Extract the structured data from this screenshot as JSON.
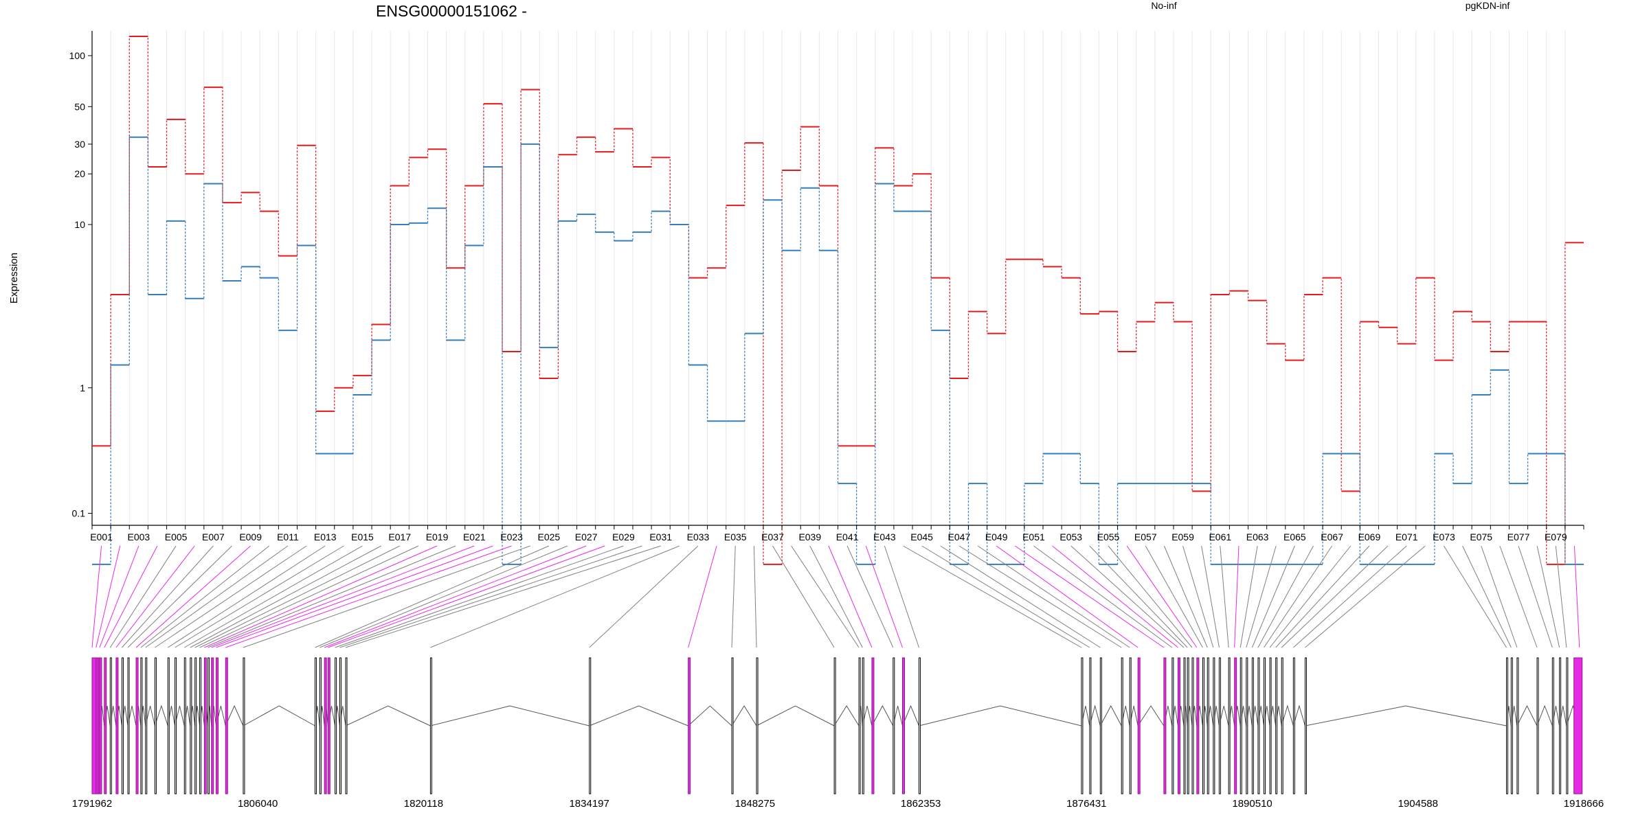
{
  "chart_data": {
    "type": "line",
    "title": "ENSG00000151062 -",
    "ylabel": "Expression",
    "y_scale": "log(x+0.1)",
    "ylim": [
      0.07,
      140
    ],
    "yticks": [
      0.1,
      1,
      10,
      20,
      30,
      50,
      100
    ],
    "ytick_labels": [
      "0.1",
      "1",
      "10",
      "20",
      "30",
      "50",
      "100"
    ],
    "legend_placement": "top",
    "exons": [
      "E001",
      "E002",
      "E003",
      "E004",
      "E005",
      "E006",
      "E007",
      "E008",
      "E009",
      "E010",
      "E011",
      "E012",
      "E013",
      "E014",
      "E015",
      "E016",
      "E017",
      "E018",
      "E019",
      "E020",
      "E021",
      "E022",
      "E023",
      "E024",
      "E025",
      "E026",
      "E027",
      "E028",
      "E029",
      "E030",
      "E031",
      "E032",
      "E033",
      "E034",
      "E035",
      "E036",
      "E037",
      "E038",
      "E039",
      "E040",
      "E041",
      "E042",
      "E043",
      "E044",
      "E045",
      "E046",
      "E047",
      "E048",
      "E049",
      "E050",
      "E051",
      "E052",
      "E053",
      "E054",
      "E055",
      "E056",
      "E057",
      "E058",
      "E059",
      "E060",
      "E061",
      "E062",
      "E063",
      "E064",
      "E065",
      "E066",
      "E067",
      "E068",
      "E069",
      "E070",
      "E071",
      "E072",
      "E073",
      "E074",
      "E075",
      "E076",
      "E077",
      "E078",
      "E079",
      "E080"
    ],
    "series": [
      {
        "name": "No-inf",
        "color": "#e41a1c",
        "values": [
          0.4,
          3.8,
          130,
          22,
          42,
          20,
          65,
          13.5,
          15.5,
          12,
          6.5,
          29.5,
          0.7,
          1,
          1.2,
          2.5,
          17,
          25,
          28,
          5.5,
          17,
          52,
          1.7,
          63,
          1.15,
          26,
          33,
          27,
          37,
          22,
          25,
          10,
          4.8,
          5.5,
          13,
          30.5,
          0,
          21,
          38,
          17,
          0.4,
          0.4,
          28.5,
          17,
          20,
          4.8,
          1.15,
          3,
          2.2,
          6.2,
          6.2,
          5.6,
          4.8,
          2.9,
          3,
          1.7,
          2.6,
          3.4,
          2.6,
          0.17,
          3.8,
          4,
          3.5,
          1.9,
          1.5,
          3.8,
          4.8,
          0.17,
          2.6,
          2.4,
          1.9,
          4.8,
          1.5,
          3,
          2.6,
          1.7,
          2.6,
          2.6,
          0,
          7.8
        ]
      },
      {
        "name": "pgKDN-inf",
        "color": "#377eb8",
        "values": [
          0,
          1.4,
          33,
          3.8,
          10.5,
          3.6,
          17.5,
          4.6,
          5.6,
          4.8,
          2.3,
          7.5,
          0.35,
          0.35,
          0.9,
          2,
          10,
          10.2,
          12.5,
          2,
          7.5,
          22,
          0,
          30,
          1.8,
          10.5,
          11.5,
          9,
          8,
          9,
          12,
          10,
          1.4,
          0.6,
          0.6,
          2.2,
          14,
          7,
          16.5,
          7,
          0.2,
          0,
          17.5,
          12,
          12,
          2.3,
          0,
          0.2,
          0,
          0,
          0.2,
          0.35,
          0.35,
          0.2,
          0,
          0.2,
          0.2,
          0.2,
          0.2,
          0.2,
          0,
          0,
          0,
          0,
          0,
          0,
          0.35,
          0.35,
          0,
          0,
          0,
          0,
          0.35,
          0.2,
          0.9,
          1.3,
          0.2,
          0.35,
          0.35,
          0,
          0.6
        ]
      }
    ],
    "genomic_axis": {
      "start": 1791962,
      "end": 1918666,
      "tick_values": [
        1791962,
        1806040,
        1820118,
        1834197,
        1848275,
        1862353,
        1876431,
        1890510,
        1904588,
        1918666
      ],
      "tick_labels": [
        "1791962",
        "1806040",
        "1820118",
        "1834197",
        "1848275",
        "1862353",
        "1876431",
        "1890510",
        "1904588",
        "1918666"
      ],
      "exon_start_positions": [
        1791962,
        1792300,
        1792600,
        1793000,
        1793500,
        1794000,
        1794500,
        1795000,
        1795700,
        1796100,
        1796500,
        1797300,
        1798400,
        1799000,
        1799800,
        1800300,
        1800700,
        1801100,
        1801500,
        1801800,
        1802100,
        1802500,
        1803300,
        1804800,
        1810900,
        1811300,
        1811700,
        1812000,
        1812600,
        1813000,
        1813500,
        1820700,
        1834200,
        1842600,
        1846300,
        1848400,
        1855000,
        1857100,
        1857400,
        1858200,
        1860000,
        1860800,
        1862200,
        1876000,
        1876700,
        1877600,
        1879400,
        1880100,
        1880800,
        1883000,
        1883700,
        1884200,
        1884700,
        1885000,
        1885400,
        1885800,
        1886300,
        1886700,
        1887200,
        1887700,
        1888500,
        1889000,
        1889500,
        1890000,
        1890500,
        1891000,
        1891500,
        1892000,
        1892500,
        1893000,
        1894000,
        1895000,
        1912100,
        1912500,
        1913000,
        1914700,
        1916000,
        1916600,
        1917200,
        1918300
      ],
      "highlighted_exons": [
        "E001",
        "E002",
        "E003",
        "E004",
        "E006",
        "E009",
        "E019",
        "E021",
        "E022",
        "E023",
        "E027",
        "E028",
        "E034",
        "E040",
        "E042",
        "E049",
        "E050",
        "E052",
        "E056",
        "E062",
        "E080"
      ],
      "highlight_color": "#e62ae6"
    }
  }
}
